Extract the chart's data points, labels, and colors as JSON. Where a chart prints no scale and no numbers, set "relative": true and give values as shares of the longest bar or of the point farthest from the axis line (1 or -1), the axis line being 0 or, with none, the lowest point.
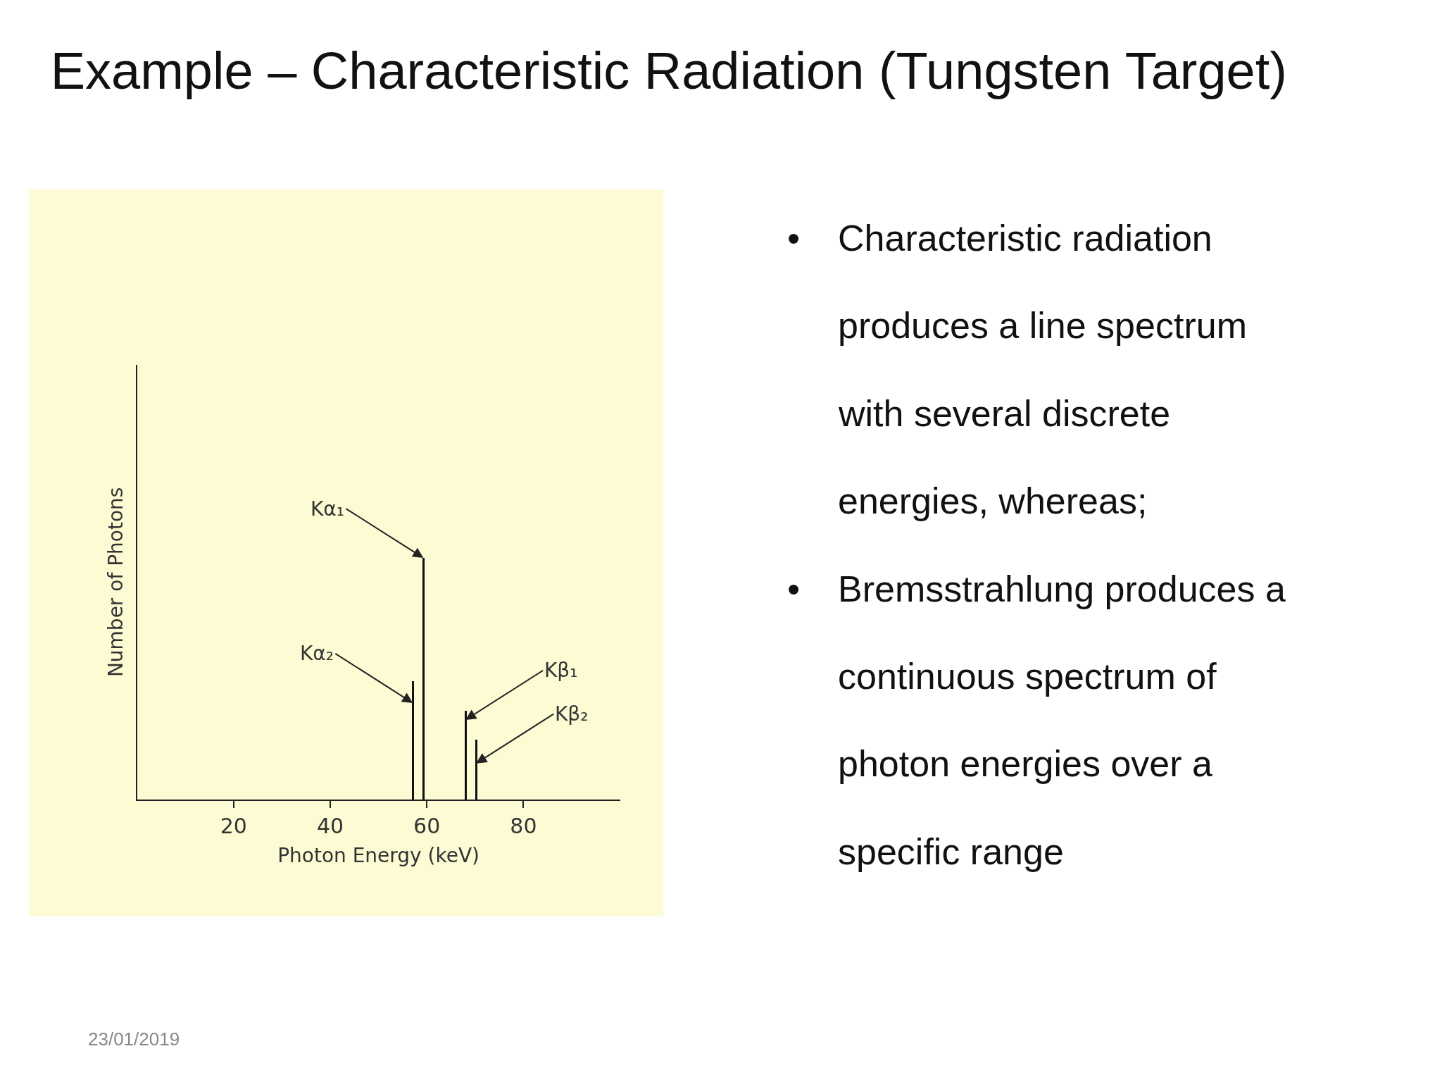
{
  "chart_data": {
    "type": "bar",
    "title": "Example – Characteristic Radiation (Tungsten Target)",
    "xlabel": "Photon Energy (keV)",
    "ylabel": "Number of Photons",
    "x": [
      57.1,
      59.3,
      68.0,
      70.2
    ],
    "values": [
      0.49,
      1,
      0.37,
      0.25
    ],
    "color": "#111111",
    "relative": true,
    "xlim": [
      0,
      100
    ],
    "xticks": [
      20,
      40,
      60,
      80
    ],
    "annotations": [
      {
        "text": "Kα₁",
        "x": 59.3,
        "y": 1
      },
      {
        "text": "Kα₂",
        "x": 57.1,
        "y": 0.4
      },
      {
        "text": "Kβ₁",
        "x": 68.0,
        "y": 0.33
      },
      {
        "text": "Kβ₂",
        "x": 70.2,
        "y": 0.15
      },
      "• Characteristic radiation produces a line spectrum with several discrete energies, whereas;",
      "• Bremsstrahlung produces a continuous spectrum of photon energies over a specific range",
      "23/01/2019"
    ]
  }
}
